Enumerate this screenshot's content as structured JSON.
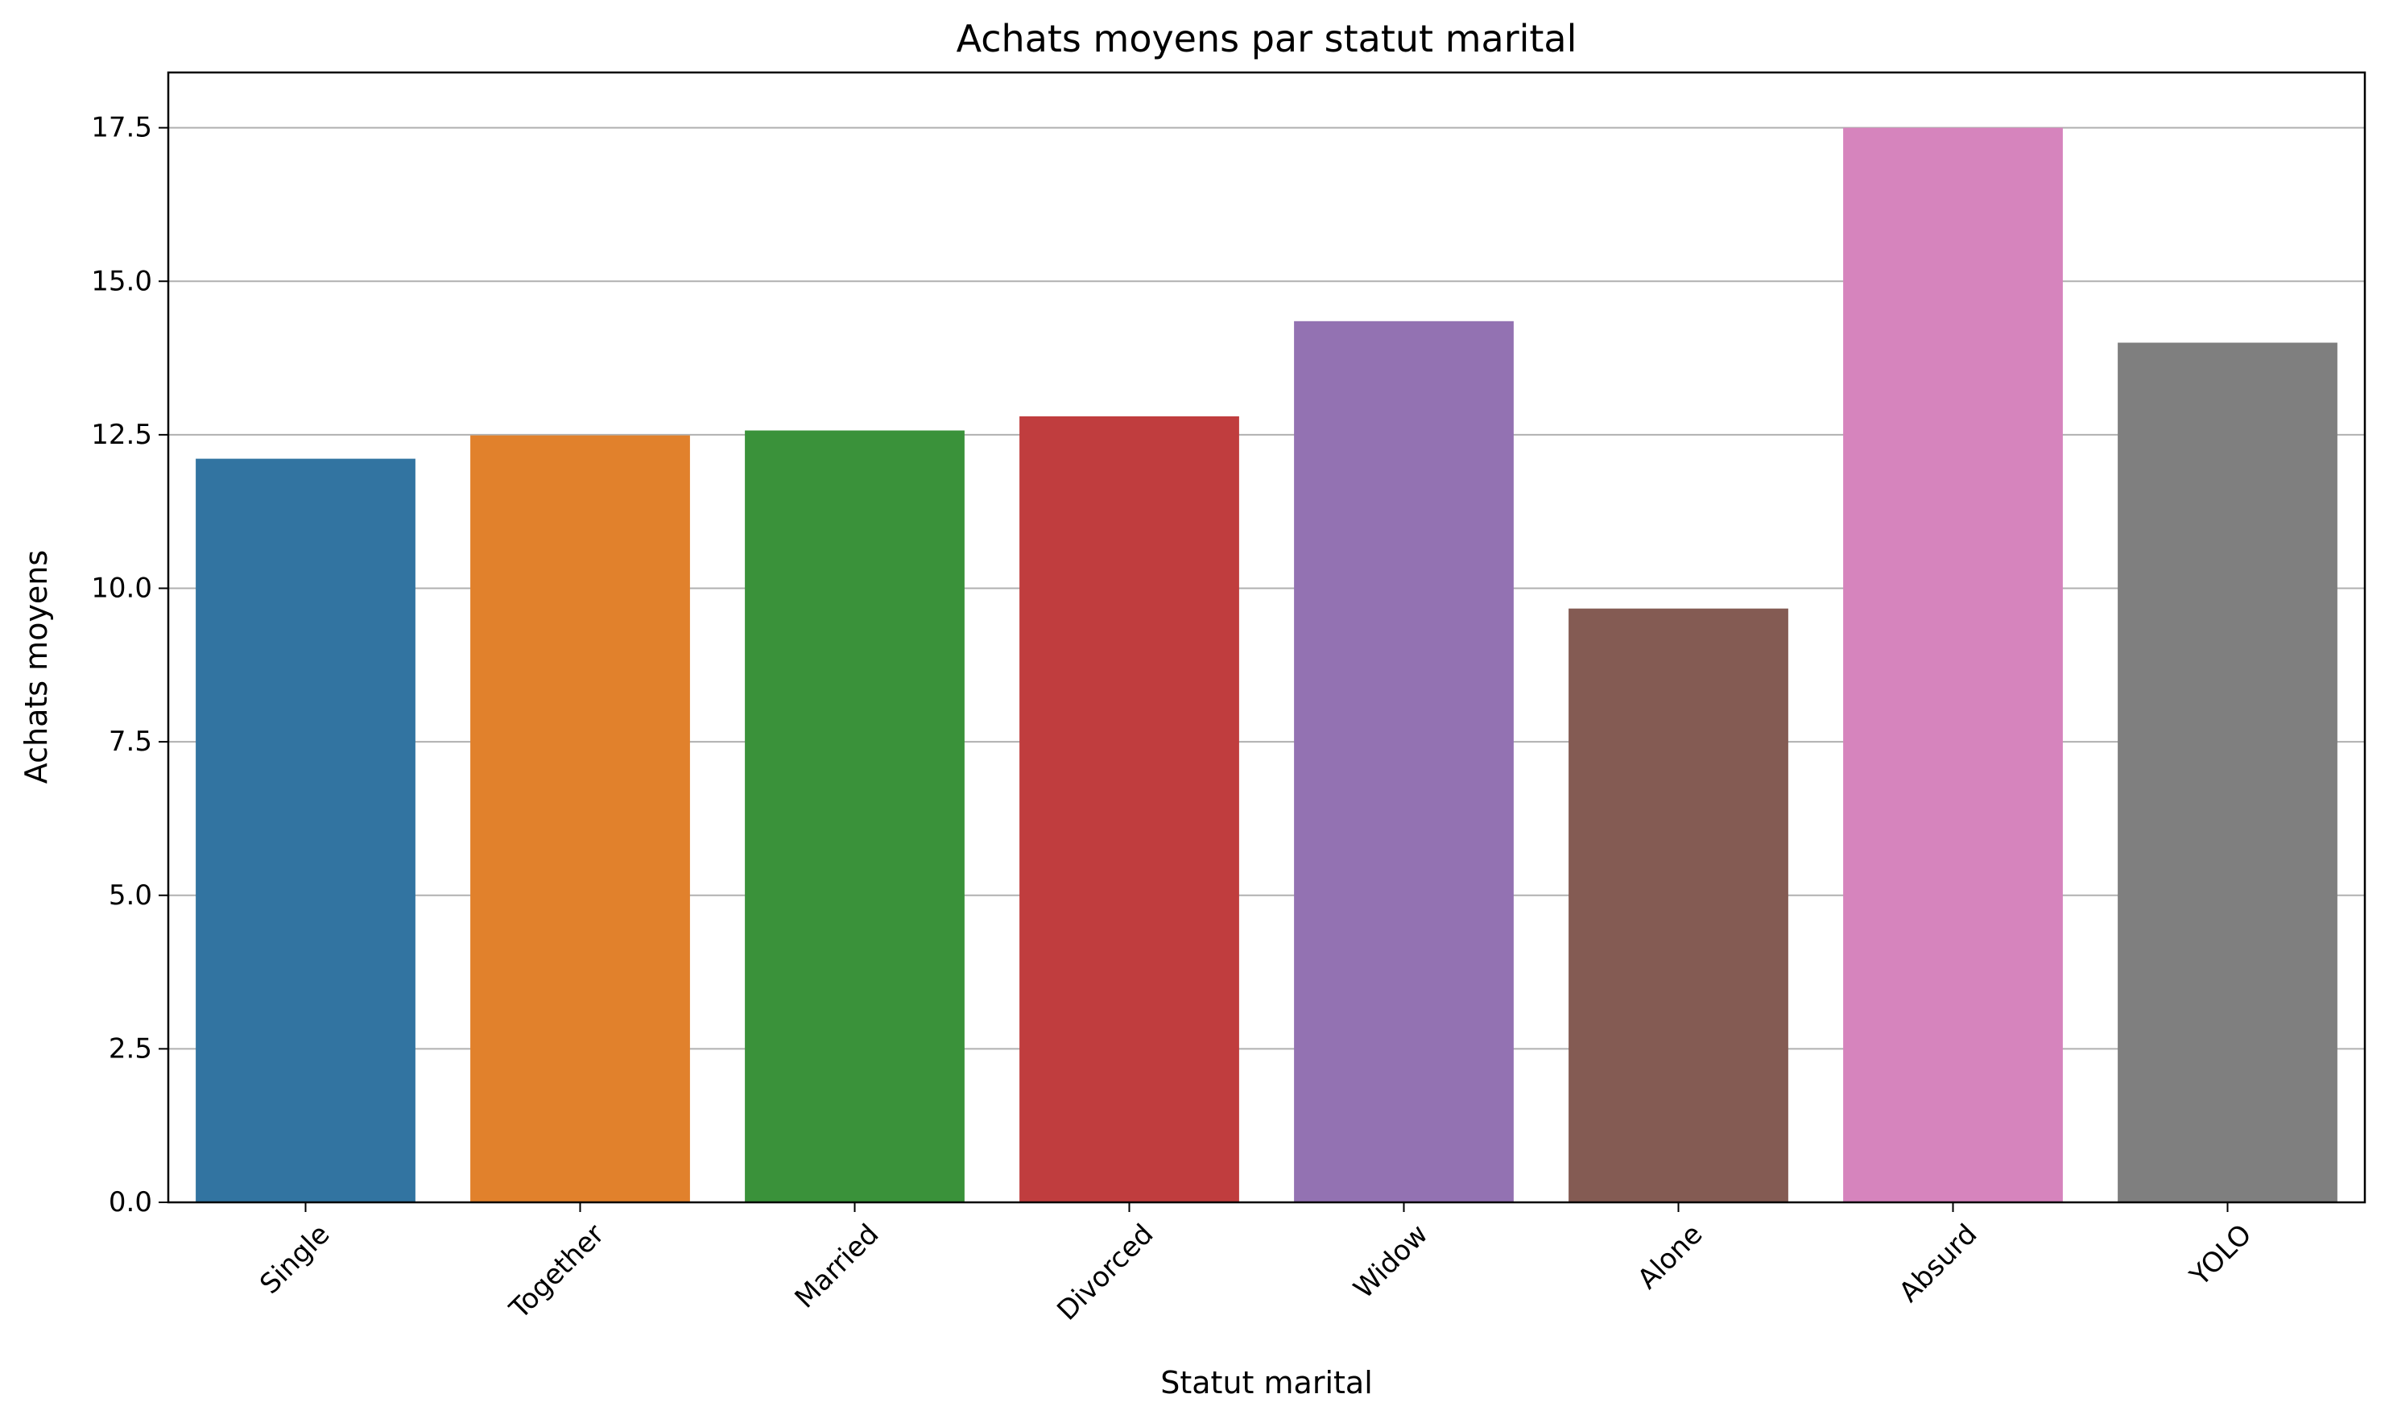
{
  "chart_data": {
    "type": "bar",
    "title": "Achats moyens par statut marital",
    "xlabel": "Statut marital",
    "ylabel": "Achats moyens",
    "categories": [
      "Single",
      "Together",
      "Married",
      "Divorced",
      "Widow",
      "Alone",
      "Absurd",
      "YOLO"
    ],
    "values": [
      12.11,
      12.49,
      12.57,
      12.8,
      14.35,
      9.67,
      17.5,
      14.0
    ],
    "colors": [
      "#3274a1",
      "#e1812c",
      "#3a923a",
      "#c03d3e",
      "#9372b2",
      "#845b53",
      "#d684bd",
      "#7f7f7f"
    ],
    "ylim": [
      0,
      18.4
    ],
    "yticks": [
      "0.0",
      "2.5",
      "5.0",
      "7.5",
      "10.0",
      "12.5",
      "15.0",
      "17.5"
    ],
    "grid": "y",
    "legend": "none"
  }
}
